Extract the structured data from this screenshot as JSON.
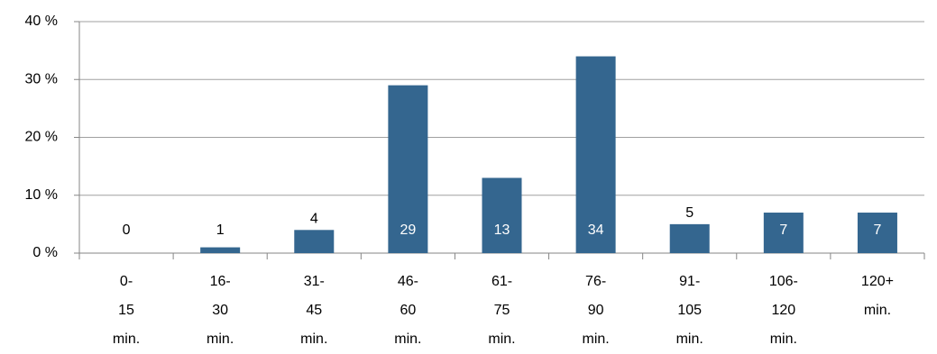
{
  "chart_data": {
    "type": "bar",
    "categories": [
      "0-15 min.",
      "16-30 min.",
      "31-45 min.",
      "46-60 min.",
      "61-75 min.",
      "76-90 min.",
      "91-105 min.",
      "106-120 min.",
      "120+ min."
    ],
    "values": [
      0,
      1,
      4,
      29,
      13,
      34,
      5,
      7,
      7
    ],
    "color": "#34668f",
    "ylim": [
      0,
      40
    ],
    "yticks": [
      {
        "value": 0,
        "label": "0 %"
      },
      {
        "value": 10,
        "label": "10 %"
      },
      {
        "value": 20,
        "label": "20 %"
      },
      {
        "value": 30,
        "label": "30 %"
      },
      {
        "value": 40,
        "label": "40 %"
      }
    ],
    "grid": true
  }
}
